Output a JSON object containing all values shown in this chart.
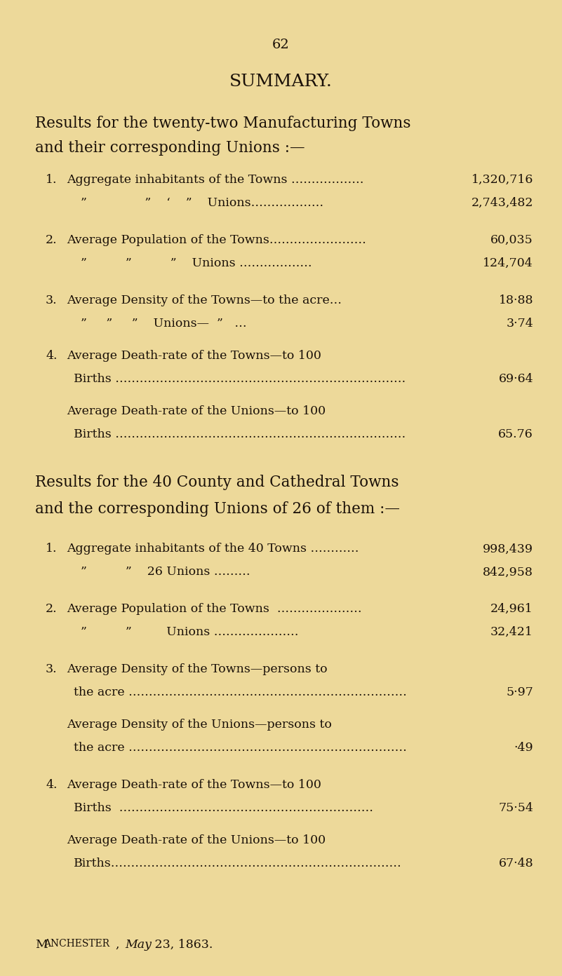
{
  "page_number": "62",
  "bg_color": "#edd99a",
  "text_color": "#1a1008",
  "title": "SUMMARY.",
  "section1_header1": "Results for the twenty-two Manufacturing Towns",
  "section1_header2": "and their corresponding Unions :—",
  "section2_header1": "Results for the 40 County and Cathedral Towns",
  "section2_header2": "and the corresponding Unions of 26 of them :—",
  "footer_place": "Manchester",
  "footer_date_italic": "May",
  "footer_date_rest": " 23, 1863."
}
